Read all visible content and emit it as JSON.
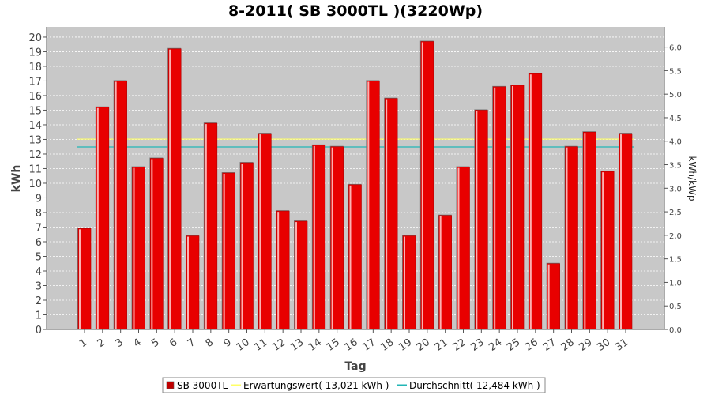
{
  "chart_data": {
    "type": "bar",
    "title": "8-2011( SB 3000TL )(3220Wp)",
    "xlabel": "Tag",
    "ylabel": "kWh",
    "ylabel_right": "kWh/kWp",
    "ylim": [
      0,
      20.7
    ],
    "yticks": [
      "0",
      "1",
      "2",
      "3",
      "4",
      "5",
      "6",
      "7",
      "8",
      "9",
      "10",
      "11",
      "12",
      "13",
      "14",
      "15",
      "16",
      "17",
      "18",
      "19",
      "20"
    ],
    "ylim_right": [
      0,
      6.43
    ],
    "yticks_right": [
      "0,0",
      "0,5",
      "1,0",
      "1,5",
      "2,0",
      "2,5",
      "3,0",
      "3,5",
      "4,0",
      "4,5",
      "5,0",
      "5,5",
      "6,0"
    ],
    "categories": [
      "1",
      "2",
      "3",
      "4",
      "5",
      "6",
      "7",
      "8",
      "9",
      "10",
      "11",
      "12",
      "13",
      "14",
      "15",
      "16",
      "17",
      "18",
      "19",
      "20",
      "21",
      "22",
      "23",
      "24",
      "25",
      "26",
      "27",
      "28",
      "29",
      "30",
      "31"
    ],
    "series": [
      {
        "name": "SB 3000TL",
        "color": "#e80000",
        "values": [
          6.9,
          15.2,
          17.0,
          11.1,
          11.7,
          19.2,
          6.4,
          14.1,
          10.7,
          11.4,
          13.4,
          8.1,
          7.4,
          12.6,
          12.5,
          9.9,
          17.0,
          15.8,
          6.4,
          19.7,
          7.8,
          11.1,
          15.0,
          16.6,
          16.7,
          17.5,
          4.5,
          12.5,
          13.5,
          10.8,
          13.4
        ]
      }
    ],
    "reference_lines": [
      {
        "name": "Erwartungswert( 13,021 kWh )",
        "value": 13.021,
        "color": "#ffff66"
      },
      {
        "name": "Durchschnitt( 12,484 kWh )",
        "value": 12.484,
        "color": "#22b6b6"
      }
    ],
    "grid": true,
    "legend_position": "bottom-center"
  }
}
